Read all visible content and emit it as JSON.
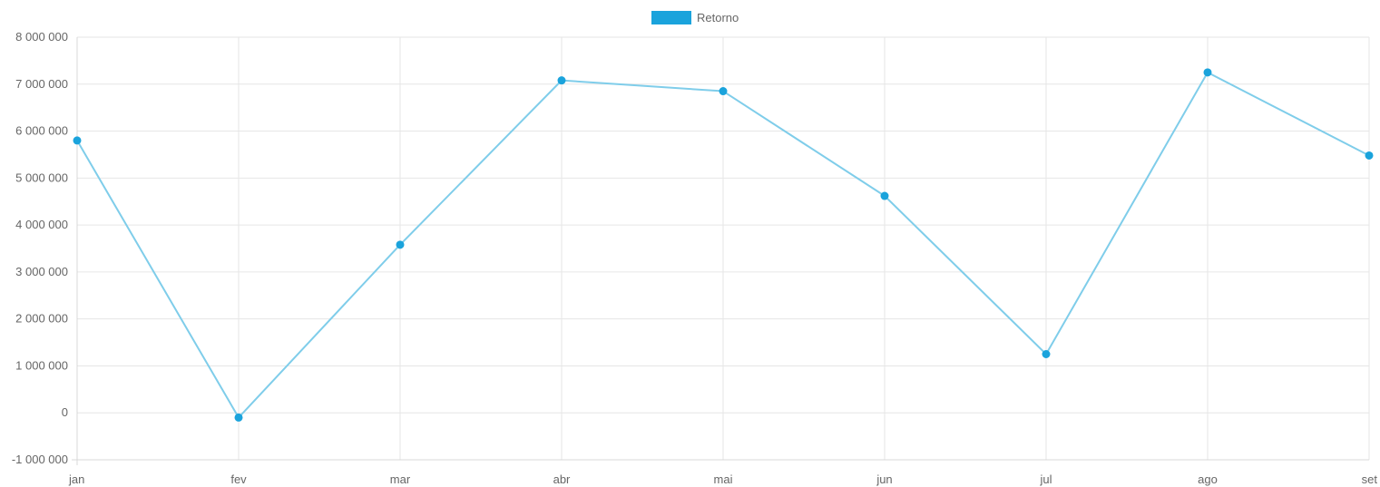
{
  "chart_data": {
    "type": "line",
    "categories": [
      "jan",
      "fev",
      "mar",
      "abr",
      "mai",
      "jun",
      "jul",
      "ago",
      "set"
    ],
    "series": [
      {
        "name": "Retorno",
        "values": [
          5800000,
          -100000,
          3580000,
          7080000,
          6850000,
          4620000,
          1250000,
          7250000,
          5480000
        ]
      }
    ],
    "ylim": [
      -1000000,
      8000000
    ],
    "yticks": [
      8000000,
      7000000,
      6000000,
      5000000,
      4000000,
      3000000,
      2000000,
      1000000,
      0,
      -1000000
    ],
    "ytick_labels": [
      "8 000 000",
      "7 000 000",
      "6 000 000",
      "5 000 000",
      "4 000 000",
      "3 000 000",
      "2 000 000",
      "1 000 000",
      "0",
      "-1 000 000"
    ],
    "legend_position": "top-center",
    "grid": true,
    "colors": {
      "line": "#7fcdea",
      "point": "#1aa3dc",
      "legend_swatch": "#1aa3dc",
      "grid": "#e6e6e6",
      "tick_text": "#666666"
    }
  }
}
